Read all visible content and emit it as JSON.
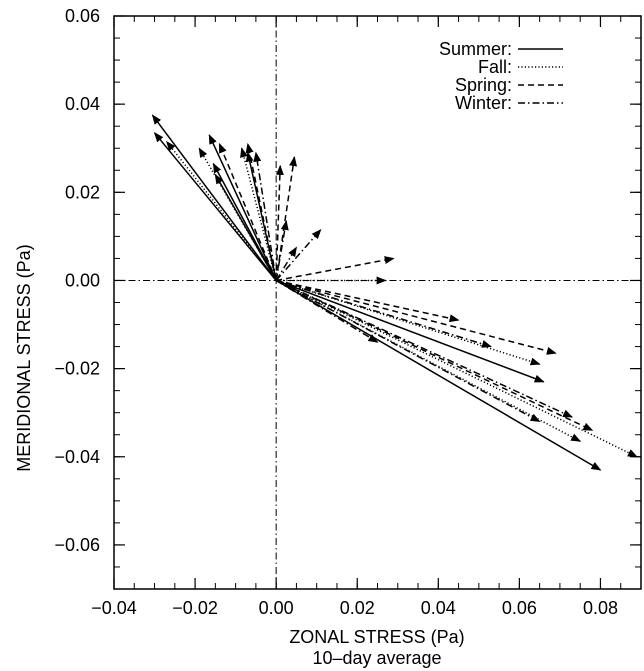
{
  "chart_data": {
    "type": "vector",
    "xlabel": "ZONAL STRESS (Pa)",
    "subtitle": "10–day average",
    "ylabel": "MERIDIONAL STRESS (Pa)",
    "xlim": [
      -0.04,
      0.09
    ],
    "ylim": [
      -0.07,
      0.06
    ],
    "xticks": [
      -0.04,
      -0.02,
      0.0,
      0.02,
      0.04,
      0.06,
      0.08
    ],
    "xtick_labels": [
      "−0.04",
      "−0.02",
      "0.00",
      "0.02",
      "0.04",
      "0.06",
      "0.08"
    ],
    "yticks": [
      -0.06,
      -0.04,
      -0.02,
      0.0,
      0.02,
      0.04,
      0.06
    ],
    "ytick_labels": [
      "−0.06",
      "−0.04",
      "−0.02",
      "0.00",
      "0.02",
      "0.04",
      "0.06"
    ],
    "reference_lines": {
      "x": 0,
      "y": 0,
      "style": "dashdot"
    },
    "legend_placement": "top-right",
    "series": [
      {
        "name": "Summer:",
        "dash": "solid",
        "vectors": [
          {
            "u": -0.0305,
            "v": 0.0375
          },
          {
            "u": -0.03,
            "v": 0.0335
          },
          {
            "u": -0.0165,
            "v": 0.033
          },
          {
            "u": -0.0155,
            "v": 0.0265
          },
          {
            "u": -0.015,
            "v": 0.024
          },
          {
            "u": -0.007,
            "v": 0.029
          },
          {
            "u": 0.08,
            "v": -0.043
          },
          {
            "u": 0.066,
            "v": -0.023
          }
        ]
      },
      {
        "name": "Fall:",
        "dash": "dotted",
        "vectors": [
          {
            "u": -0.027,
            "v": 0.0315
          },
          {
            "u": -0.019,
            "v": 0.03
          },
          {
            "u": -0.0085,
            "v": 0.03
          },
          {
            "u": 0.027,
            "v": 0.0
          },
          {
            "u": 0.089,
            "v": -0.04
          },
          {
            "u": 0.075,
            "v": -0.0365
          },
          {
            "u": 0.065,
            "v": -0.019
          }
        ]
      },
      {
        "name": "Spring:",
        "dash": "dashed",
        "vectors": [
          {
            "u": -0.014,
            "v": 0.031
          },
          {
            "u": -0.007,
            "v": 0.031
          },
          {
            "u": 0.001,
            "v": 0.026
          },
          {
            "u": 0.0045,
            "v": 0.028
          },
          {
            "u": 0.029,
            "v": 0.005
          },
          {
            "u": 0.045,
            "v": -0.009
          },
          {
            "u": 0.078,
            "v": -0.034
          },
          {
            "u": 0.069,
            "v": -0.0165
          }
        ]
      },
      {
        "name": "Winter:",
        "dash": "dashdot",
        "vectors": [
          {
            "u": -0.005,
            "v": 0.029
          },
          {
            "u": 0.0025,
            "v": 0.0135
          },
          {
            "u": 0.005,
            "v": 0.0075
          },
          {
            "u": 0.011,
            "v": 0.0115
          },
          {
            "u": 0.073,
            "v": -0.031
          },
          {
            "u": 0.065,
            "v": -0.032
          },
          {
            "u": 0.025,
            "v": -0.014
          },
          {
            "u": 0.053,
            "v": -0.015
          }
        ]
      }
    ]
  }
}
